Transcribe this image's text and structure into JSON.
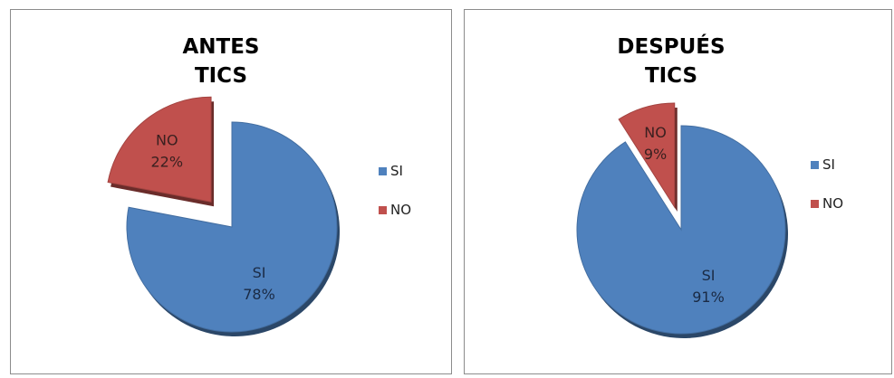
{
  "chart_data": [
    {
      "type": "pie",
      "title": [
        "ANTES",
        "TICS"
      ],
      "categories": [
        "SI",
        "NO"
      ],
      "values": [
        78,
        22
      ],
      "data_labels": [
        {
          "category": "SI",
          "percent": "78%"
        },
        {
          "category": "NO",
          "percent": "22%"
        }
      ],
      "exploded": "NO",
      "legend": {
        "position": "right",
        "entries": [
          "SI",
          "NO"
        ]
      },
      "colors": {
        "SI": "#4f81bd",
        "NO": "#c0504d"
      }
    },
    {
      "type": "pie",
      "title": [
        "DESPUÉS",
        "TICS"
      ],
      "categories": [
        "SI",
        "NO"
      ],
      "values": [
        91,
        9
      ],
      "data_labels": [
        {
          "category": "SI",
          "percent": "91%"
        },
        {
          "category": "NO",
          "percent": "9%"
        }
      ],
      "exploded": "NO",
      "legend": {
        "position": "right",
        "entries": [
          "SI",
          "NO"
        ]
      },
      "colors": {
        "SI": "#4f81bd",
        "NO": "#c0504d"
      }
    }
  ]
}
